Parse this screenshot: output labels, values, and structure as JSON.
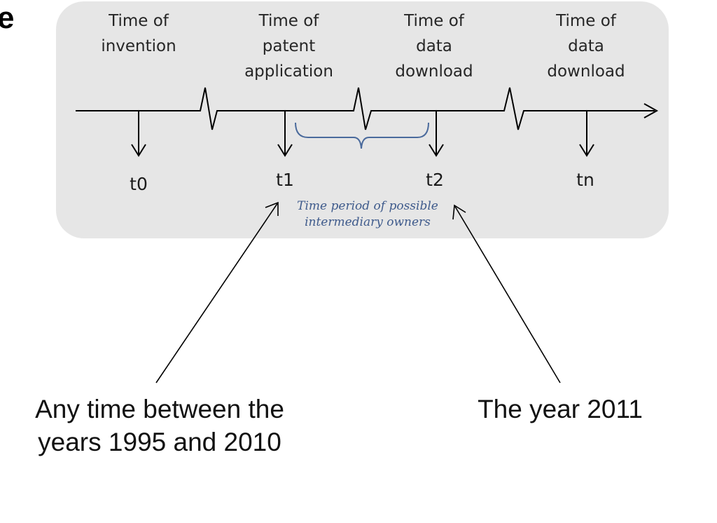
{
  "corner_text": "e",
  "events": [
    {
      "label": "Time of invention",
      "tick": "t0"
    },
    {
      "label": "Time of patent application",
      "tick": "t1"
    },
    {
      "label": "Time of data download",
      "tick": "t2"
    },
    {
      "label": "Time of data download",
      "tick": "tn"
    }
  ],
  "period_label": "Time period of possible intermediary owners",
  "notes": {
    "left": "Any time between the years 1995 and 2010",
    "right": "The year 2011"
  },
  "colors": {
    "panel": "#e6e6e6",
    "bracket": "#4a6a9c",
    "period_text": "#3f5b8c",
    "line": "#000000"
  }
}
